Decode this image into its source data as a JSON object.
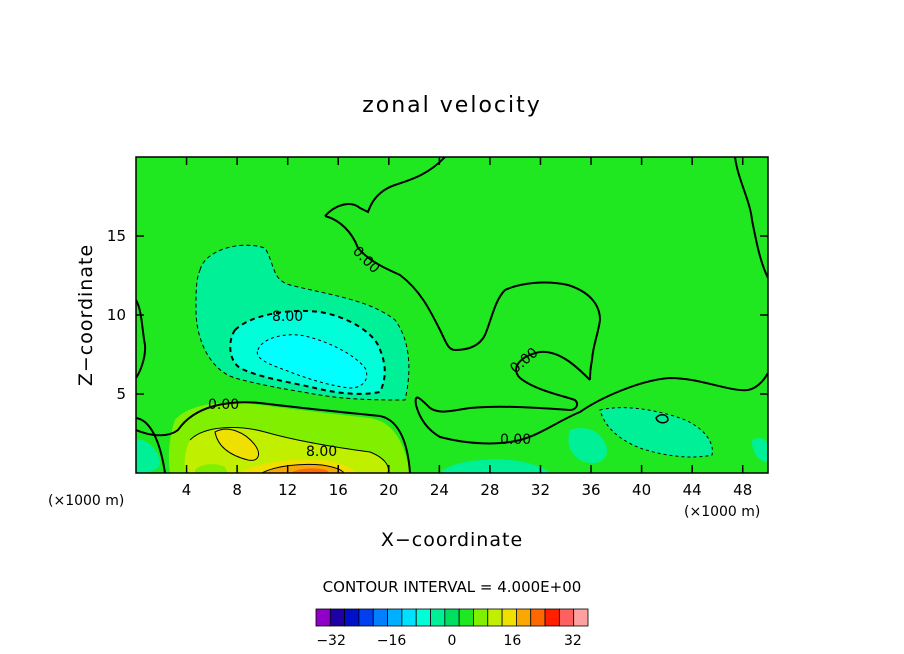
{
  "chart_data": {
    "type": "contour",
    "title": "zonal velocity",
    "xlabel": "X−coordinate",
    "ylabel": "Z−coordinate",
    "x_unit_label": "(×1000 m)",
    "xlim": [
      0,
      50
    ],
    "ylim": [
      0,
      20
    ],
    "x_ticks": [
      4,
      8,
      12,
      16,
      20,
      24,
      28,
      32,
      36,
      40,
      44,
      48
    ],
    "x_tick_labels": [
      "4",
      "8",
      "12",
      "16",
      "20",
      "24",
      "28",
      "32",
      "36",
      "40",
      "44",
      "48"
    ],
    "y_ticks": [
      5,
      10,
      15
    ],
    "y_tick_labels": [
      "5",
      "10",
      "15"
    ],
    "contour_labels": [
      "0.00",
      "0.00",
      "0.00",
      "0.00",
      "8.00",
      "8.00"
    ],
    "contour_interval_text": "CONTOUR INTERVAL = 4.000E+00",
    "colorbar": {
      "levels": [
        -36,
        -32,
        -28,
        -24,
        -20,
        -16,
        -12,
        -8,
        -4,
        0,
        4,
        8,
        12,
        16,
        20,
        24,
        28,
        32,
        36
      ],
      "tick_values": [
        -32,
        -16,
        0,
        16,
        32
      ],
      "tick_labels": [
        "−32",
        "−16",
        "0",
        "16",
        "32"
      ],
      "colors": [
        "#8f00c8",
        "#1f00a8",
        "#0010c8",
        "#0040f0",
        "#0080ff",
        "#00b0ff",
        "#00e0ff",
        "#00ffd8",
        "#00f098",
        "#00e060",
        "#20e820",
        "#80f000",
        "#c0f000",
        "#f0e000",
        "#f8a800",
        "#ff6800",
        "#ff2000",
        "#ff6060",
        "#ffa0a0"
      ]
    }
  }
}
